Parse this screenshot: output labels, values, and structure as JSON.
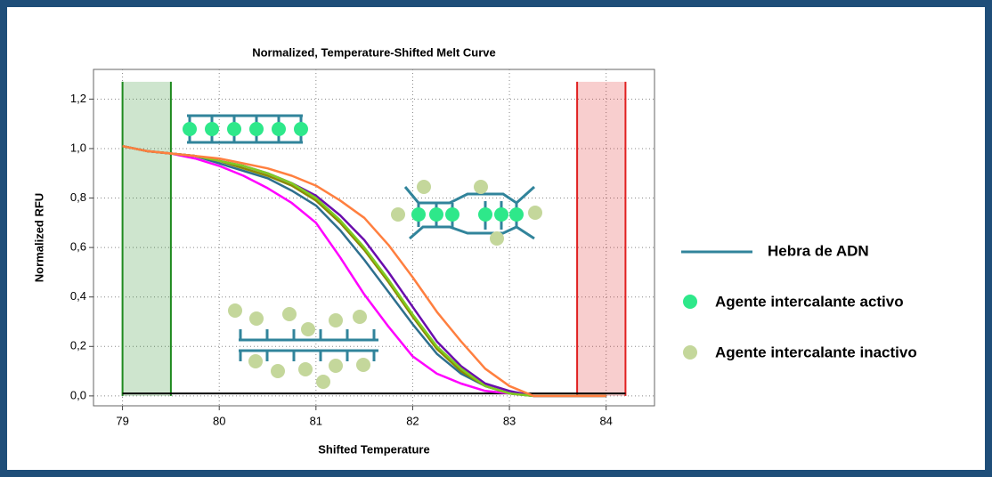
{
  "chart_data": {
    "type": "line",
    "title": "Normalized, Temperature-Shifted Melt Curve",
    "x_label": "Shifted Temperature",
    "y_label": "Normalized RFU",
    "xlim": [
      78.7,
      84.5
    ],
    "ylim": [
      -0.04,
      1.32
    ],
    "xticks": [
      79,
      80,
      81,
      82,
      83,
      84
    ],
    "yticks": [
      {
        "value": 0,
        "label": "0,0"
      },
      {
        "value": 0.2,
        "label": "0,2"
      },
      {
        "value": 0.4,
        "label": "0,4"
      },
      {
        "value": 0.6,
        "label": "0,6"
      },
      {
        "value": 0.8,
        "label": "0,8"
      },
      {
        "value": 1.0,
        "label": "1,0"
      },
      {
        "value": 1.2,
        "label": "1,2"
      }
    ],
    "grid": true,
    "x": [
      79,
      79.25,
      79.5,
      79.75,
      80,
      80.25,
      80.5,
      80.75,
      81,
      81.25,
      81.5,
      81.75,
      82,
      82.25,
      82.5,
      82.75,
      83,
      83.25,
      83.5,
      83.75,
      84
    ],
    "series": [
      {
        "color": "#ff00ff",
        "values": [
          1.01,
          0.99,
          0.98,
          0.96,
          0.93,
          0.89,
          0.84,
          0.78,
          0.7,
          0.56,
          0.41,
          0.28,
          0.16,
          0.09,
          0.05,
          0.02,
          0.01,
          0.0,
          0.0,
          0.0,
          0.0
        ]
      },
      {
        "color": "#2e6f8e",
        "values": [
          1.01,
          0.99,
          0.98,
          0.97,
          0.94,
          0.91,
          0.88,
          0.83,
          0.77,
          0.67,
          0.55,
          0.42,
          0.29,
          0.17,
          0.09,
          0.04,
          0.01,
          0.0,
          0.0,
          0.0,
          0.0
        ]
      },
      {
        "color": "#8b8b00",
        "values": [
          1.01,
          0.99,
          0.98,
          0.97,
          0.95,
          0.92,
          0.89,
          0.85,
          0.79,
          0.7,
          0.59,
          0.46,
          0.32,
          0.19,
          0.1,
          0.04,
          0.01,
          0.0,
          0.0,
          0.0,
          0.0
        ]
      },
      {
        "color": "#6a0dad",
        "values": [
          1.01,
          0.99,
          0.98,
          0.97,
          0.95,
          0.93,
          0.9,
          0.86,
          0.81,
          0.73,
          0.63,
          0.5,
          0.36,
          0.22,
          0.12,
          0.05,
          0.02,
          0.0,
          0.0,
          0.0,
          0.0
        ]
      },
      {
        "color": "#7fcc22",
        "values": [
          1.01,
          0.99,
          0.98,
          0.97,
          0.95,
          0.93,
          0.9,
          0.86,
          0.8,
          0.71,
          0.6,
          0.47,
          0.33,
          0.2,
          0.11,
          0.04,
          0.01,
          0.0,
          0.0,
          0.0,
          0.0
        ]
      },
      {
        "color": "#ff7f3f",
        "values": [
          1.01,
          0.99,
          0.98,
          0.97,
          0.96,
          0.94,
          0.92,
          0.89,
          0.85,
          0.79,
          0.72,
          0.61,
          0.48,
          0.34,
          0.22,
          0.11,
          0.04,
          0.0,
          0.0,
          0.0,
          0.0
        ]
      }
    ],
    "regions": [
      {
        "xlim": [
          79,
          79.5
        ],
        "ylim": [
          0,
          1.27
        ],
        "color": "#1e8a1e"
      },
      {
        "xlim": [
          83.7,
          84.2
        ],
        "ylim": [
          0,
          1.27
        ],
        "color": "#e02020"
      }
    ],
    "reference_line": {
      "y": 0.01,
      "xlim": [
        79,
        84.2
      ],
      "color": "#000000"
    },
    "legend_items": [
      {
        "label": "Hebra de ADN",
        "color": "#31849b"
      },
      {
        "label": "Agente intercalante activo",
        "color": "#2ee88a"
      },
      {
        "label": "Agente intercalante inactivo",
        "color": "#c4d79b"
      }
    ]
  }
}
